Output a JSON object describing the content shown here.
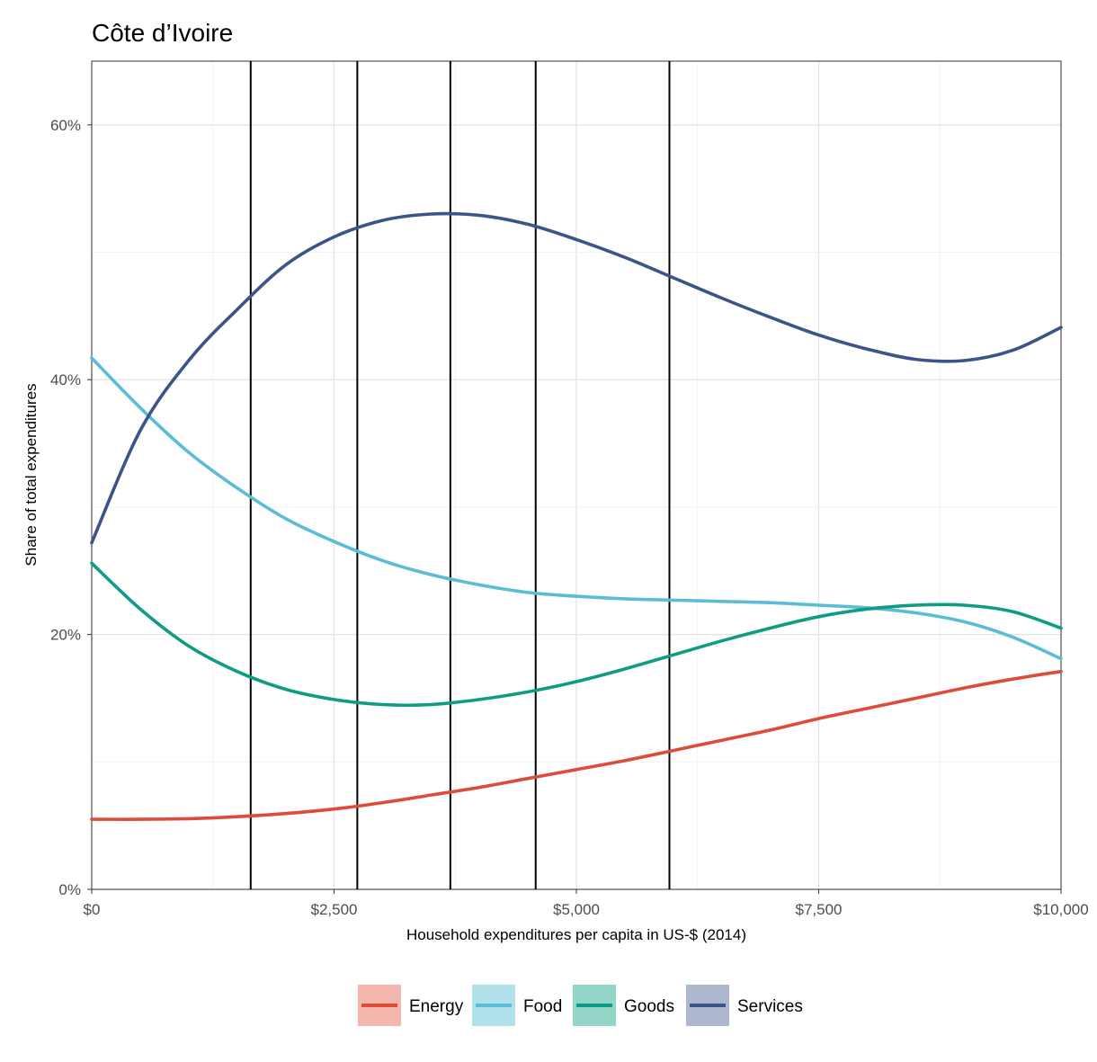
{
  "chart_data": {
    "type": "line",
    "title": "Côte d’Ivoire",
    "xlabel": "Household expenditures per capita in US-$ (2014)",
    "ylabel": "Share of total expenditures",
    "xlim": [
      0,
      10000
    ],
    "ylim": [
      0,
      0.65
    ],
    "x_ticks": [
      0,
      2500,
      5000,
      7500,
      10000
    ],
    "x_tick_labels": [
      "$0",
      "$2,500",
      "$5,000",
      "$7,500",
      "$10,000"
    ],
    "y_ticks": [
      0,
      0.2,
      0.4,
      0.6
    ],
    "y_tick_labels": [
      "0%",
      "20%",
      "40%",
      "60%"
    ],
    "grid": true,
    "legend_position": "bottom",
    "vlines": [
      1640,
      2740,
      3700,
      4580,
      5960
    ],
    "series": [
      {
        "name": "Energy",
        "color": "#dd4b39",
        "fill": "#f4b7ae",
        "x": [
          0,
          500,
          1000,
          1500,
          2000,
          2500,
          3000,
          3500,
          4000,
          4500,
          5000,
          5500,
          6000,
          6500,
          7000,
          7500,
          8000,
          8500,
          9000,
          9500,
          10000
        ],
        "y": [
          0.055,
          0.055,
          0.0555,
          0.057,
          0.0595,
          0.063,
          0.068,
          0.074,
          0.08,
          0.087,
          0.094,
          0.101,
          0.109,
          0.117,
          0.125,
          0.134,
          0.142,
          0.15,
          0.158,
          0.165,
          0.171
        ]
      },
      {
        "name": "Food",
        "color": "#5bbcd6",
        "fill": "#b1dfea",
        "x": [
          0,
          500,
          1000,
          1500,
          2000,
          2500,
          3000,
          3500,
          4000,
          4500,
          5000,
          5500,
          6000,
          6500,
          7000,
          7500,
          8000,
          8500,
          9000,
          9500,
          10000
        ],
        "y": [
          0.417,
          0.378,
          0.343,
          0.315,
          0.291,
          0.273,
          0.258,
          0.247,
          0.239,
          0.233,
          0.23,
          0.228,
          0.227,
          0.226,
          0.225,
          0.223,
          0.221,
          0.217,
          0.21,
          0.198,
          0.181
        ]
      },
      {
        "name": "Goods",
        "color": "#0f9b84",
        "fill": "#93d6c8",
        "x": [
          0,
          500,
          1000,
          1500,
          2000,
          2500,
          3000,
          3500,
          4000,
          4500,
          5000,
          5500,
          6000,
          6500,
          7000,
          7500,
          8000,
          8500,
          9000,
          9500,
          10000
        ],
        "y": [
          0.256,
          0.22,
          0.191,
          0.171,
          0.157,
          0.149,
          0.145,
          0.145,
          0.149,
          0.155,
          0.163,
          0.173,
          0.184,
          0.195,
          0.205,
          0.214,
          0.22,
          0.223,
          0.223,
          0.218,
          0.205
        ]
      },
      {
        "name": "Services",
        "color": "#3c5488",
        "fill": "#adb8cf",
        "x": [
          0,
          500,
          1000,
          1500,
          2000,
          2500,
          3000,
          3500,
          4000,
          4500,
          5000,
          5500,
          6000,
          6500,
          7000,
          7500,
          8000,
          8500,
          9000,
          9500,
          10000
        ],
        "y": [
          0.272,
          0.36,
          0.415,
          0.455,
          0.49,
          0.512,
          0.525,
          0.53,
          0.529,
          0.522,
          0.51,
          0.496,
          0.48,
          0.464,
          0.449,
          0.435,
          0.424,
          0.416,
          0.415,
          0.423,
          0.441
        ]
      }
    ]
  }
}
